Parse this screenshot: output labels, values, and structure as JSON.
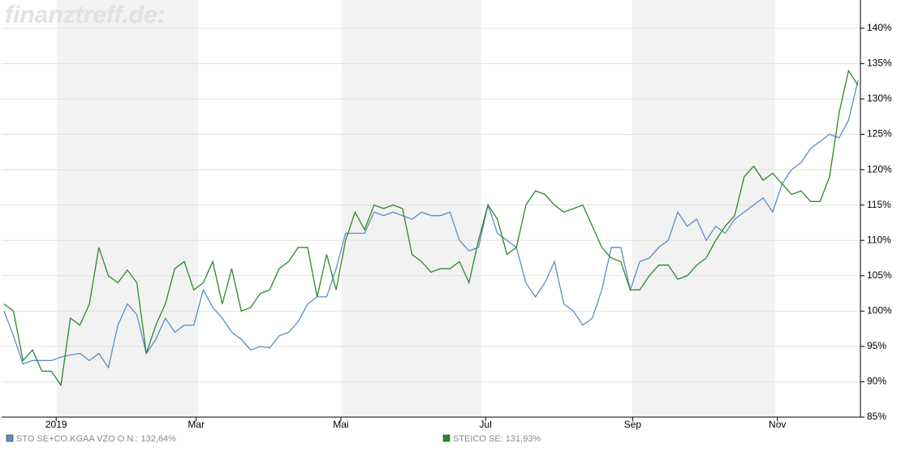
{
  "chart_data": {
    "type": "line",
    "watermark": "finanztreff.de:",
    "x": [
      -22,
      -18,
      -14,
      -10,
      -6,
      -2,
      2,
      6,
      10,
      14,
      18,
      22,
      26,
      30,
      34,
      38,
      42,
      46,
      50,
      54,
      58,
      62,
      66,
      70,
      74,
      78,
      82,
      86,
      90,
      94,
      98,
      102,
      106,
      110,
      114,
      118,
      122,
      126,
      130,
      134,
      138,
      142,
      146,
      150,
      154,
      158,
      162,
      166,
      170,
      174,
      178,
      182,
      186,
      190,
      194,
      198,
      202,
      206,
      210,
      214,
      218,
      222,
      226,
      230,
      234,
      238,
      242,
      246,
      250,
      254,
      258,
      262,
      266,
      270,
      274,
      278,
      282,
      286,
      290,
      294,
      298,
      302,
      306,
      310,
      314,
      318,
      322,
      326,
      330,
      334,
      338
    ],
    "series": [
      {
        "name": "STO SE+CO.KGAA VZO O.N.: 132,64%",
        "color": "#5b8ec4",
        "values": [
          100,
          96.5,
          92.5,
          93,
          93,
          93,
          93.5,
          93.8,
          94,
          93,
          94,
          92,
          98,
          101,
          99.5,
          94,
          96,
          99,
          97,
          98,
          98,
          103,
          100.5,
          99,
          97,
          96,
          94.5,
          95,
          94.8,
          96.5,
          97,
          98.5,
          101,
          102,
          102,
          106,
          111,
          111,
          111,
          114,
          113.5,
          114,
          113.5,
          113,
          114,
          113.5,
          113.5,
          114,
          110,
          108.5,
          109,
          115,
          111,
          110,
          109,
          104,
          102,
          104,
          107,
          101,
          100,
          98,
          99,
          103,
          109,
          109,
          103,
          107,
          107.5,
          109,
          110,
          114,
          112,
          113,
          110,
          112,
          111,
          113,
          114,
          115,
          116,
          114,
          118,
          120,
          121,
          123,
          124,
          125,
          124.5,
          127,
          132.64
        ]
      },
      {
        "name": "STEICO SE: 131,93%",
        "color": "#2a8a2a",
        "values": [
          101,
          100,
          93,
          94.5,
          91.5,
          91.5,
          89.5,
          99,
          98,
          101,
          109,
          105,
          104,
          105.8,
          104,
          94,
          98,
          101,
          106,
          107,
          103,
          104,
          107,
          101,
          106,
          100,
          100.5,
          102.5,
          103,
          106,
          107,
          109,
          109,
          102,
          108,
          103,
          110,
          114,
          111.5,
          115,
          114.5,
          115,
          114.5,
          108,
          107,
          105.5,
          106,
          106,
          107,
          104,
          110,
          115,
          113,
          108,
          109,
          115,
          117,
          116.5,
          115,
          114,
          114.5,
          115,
          112,
          109,
          107.5,
          107,
          103,
          103,
          105,
          106.5,
          106.5,
          104.5,
          105,
          106.5,
          107.5,
          110,
          112,
          113.5,
          119,
          120.5,
          118.5,
          119.5,
          118,
          116.5,
          117,
          115.5,
          115.5,
          119,
          128,
          134,
          131.93
        ]
      }
    ],
    "xlim": [
      -23,
      339
    ],
    "xticks": [
      {
        "value": 0,
        "label": "2019"
      },
      {
        "value": 59,
        "label": "Mar"
      },
      {
        "value": 120,
        "label": "Mai"
      },
      {
        "value": 181,
        "label": "Jul"
      },
      {
        "value": 243,
        "label": "Sep"
      },
      {
        "value": 304,
        "label": "Nov"
      }
    ],
    "ylim": [
      85,
      144
    ],
    "yticks": [
      {
        "value": 85,
        "label": "85%"
      },
      {
        "value": 90,
        "label": "90%"
      },
      {
        "value": 95,
        "label": "95%"
      },
      {
        "value": 100,
        "label": "100%"
      },
      {
        "value": 105,
        "label": "105%"
      },
      {
        "value": 110,
        "label": "110%"
      },
      {
        "value": 115,
        "label": "115%"
      },
      {
        "value": 120,
        "label": "120%"
      },
      {
        "value": 125,
        "label": "125%"
      },
      {
        "value": 130,
        "label": "130%"
      },
      {
        "value": 135,
        "label": "135%"
      },
      {
        "value": 140,
        "label": "140%"
      }
    ],
    "grid": true
  }
}
